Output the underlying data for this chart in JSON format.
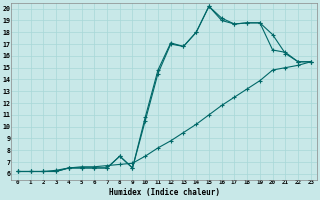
{
  "xlabel": "Humidex (Indice chaleur)",
  "bg_color": "#c8e8e8",
  "grid_color": "#a8d8d8",
  "line_color": "#006868",
  "xlim": [
    -0.5,
    23.5
  ],
  "ylim": [
    5.5,
    20.5
  ],
  "xticks": [
    0,
    1,
    2,
    3,
    4,
    5,
    6,
    7,
    8,
    9,
    10,
    11,
    12,
    13,
    14,
    15,
    16,
    17,
    18,
    19,
    20,
    21,
    22,
    23
  ],
  "yticks": [
    6,
    7,
    8,
    9,
    10,
    11,
    12,
    13,
    14,
    15,
    16,
    17,
    18,
    19,
    20
  ],
  "line1_x": [
    0,
    1,
    2,
    3,
    4,
    5,
    6,
    7,
    8,
    9,
    10,
    11,
    12,
    13,
    14,
    15,
    16,
    17,
    18,
    19,
    20,
    21,
    22,
    23
  ],
  "line1_y": [
    6.2,
    6.2,
    6.2,
    6.2,
    6.5,
    6.5,
    6.5,
    6.5,
    7.5,
    6.5,
    10.8,
    14.8,
    17.1,
    16.8,
    18.0,
    20.2,
    19.0,
    18.7,
    18.8,
    18.8,
    16.5,
    16.3,
    15.5,
    15.5
  ],
  "line2_x": [
    0,
    1,
    2,
    3,
    4,
    5,
    6,
    7,
    8,
    9,
    10,
    11,
    12,
    13,
    14,
    15,
    16,
    17,
    18,
    19,
    20,
    21,
    22,
    23
  ],
  "line2_y": [
    6.2,
    6.2,
    6.2,
    6.2,
    6.5,
    6.5,
    6.5,
    6.5,
    7.5,
    6.5,
    10.5,
    14.5,
    17.0,
    16.8,
    18.0,
    20.2,
    19.2,
    18.7,
    18.8,
    18.8,
    17.8,
    16.2,
    15.5,
    15.5
  ],
  "line3_x": [
    0,
    1,
    2,
    3,
    4,
    5,
    6,
    7,
    8,
    9,
    10,
    11,
    12,
    13,
    14,
    15,
    16,
    17,
    18,
    19,
    20,
    21,
    22,
    23
  ],
  "line3_y": [
    6.2,
    6.2,
    6.2,
    6.3,
    6.5,
    6.6,
    6.6,
    6.7,
    6.8,
    6.9,
    7.5,
    8.2,
    8.8,
    9.5,
    10.2,
    11.0,
    11.8,
    12.5,
    13.2,
    13.9,
    14.8,
    15.0,
    15.2,
    15.5
  ]
}
